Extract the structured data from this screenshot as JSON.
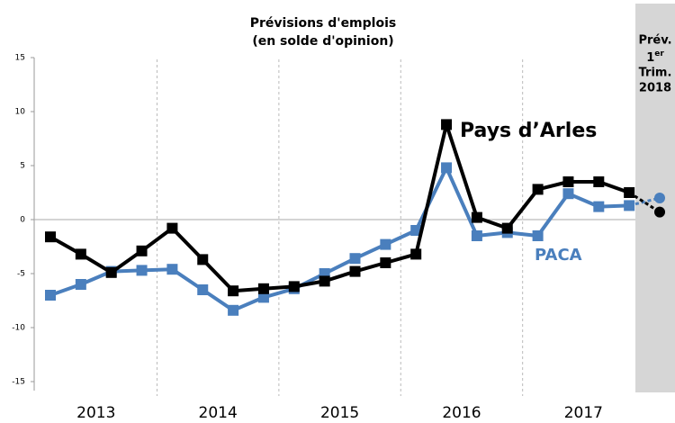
{
  "chart_data": {
    "type": "line",
    "title": [
      "Prévisions d'emplois",
      "(en solde d'opinion)"
    ],
    "categories": [
      null,
      null,
      null,
      null,
      null,
      null,
      null,
      null,
      null,
      null,
      null,
      null,
      null,
      null,
      null,
      null,
      null,
      null,
      null,
      null,
      null
    ],
    "year_labels": [
      "2013",
      "2014",
      "2015",
      "2016",
      "2017"
    ],
    "forecast_label": [
      "Prév.",
      "1",
      "er",
      "Trim.",
      "2018"
    ],
    "series": [
      {
        "name": "Pays d’Arles",
        "color": "#000000",
        "values": [
          -1.6,
          -3.2,
          -4.9,
          -2.9,
          -0.8,
          -3.7,
          -6.6,
          -6.4,
          -6.2,
          -5.7,
          -4.8,
          -4.0,
          -3.2,
          8.8,
          0.2,
          -0.8,
          2.8,
          3.5,
          3.5,
          2.5,
          0.7
        ]
      },
      {
        "name": "PACA",
        "color": "#4a7fbd",
        "values": [
          -7.0,
          -6.0,
          -4.8,
          -4.7,
          -4.6,
          -6.5,
          -8.4,
          -7.2,
          -6.4,
          -5.0,
          -3.6,
          -2.3,
          -1.0,
          4.8,
          -1.5,
          -1.2,
          -1.5,
          2.4,
          1.2,
          1.3,
          2.0
        ]
      }
    ],
    "ylim": [
      -15,
      15
    ],
    "yticks": [
      15,
      10,
      5,
      0,
      -5,
      -10,
      -15
    ]
  }
}
